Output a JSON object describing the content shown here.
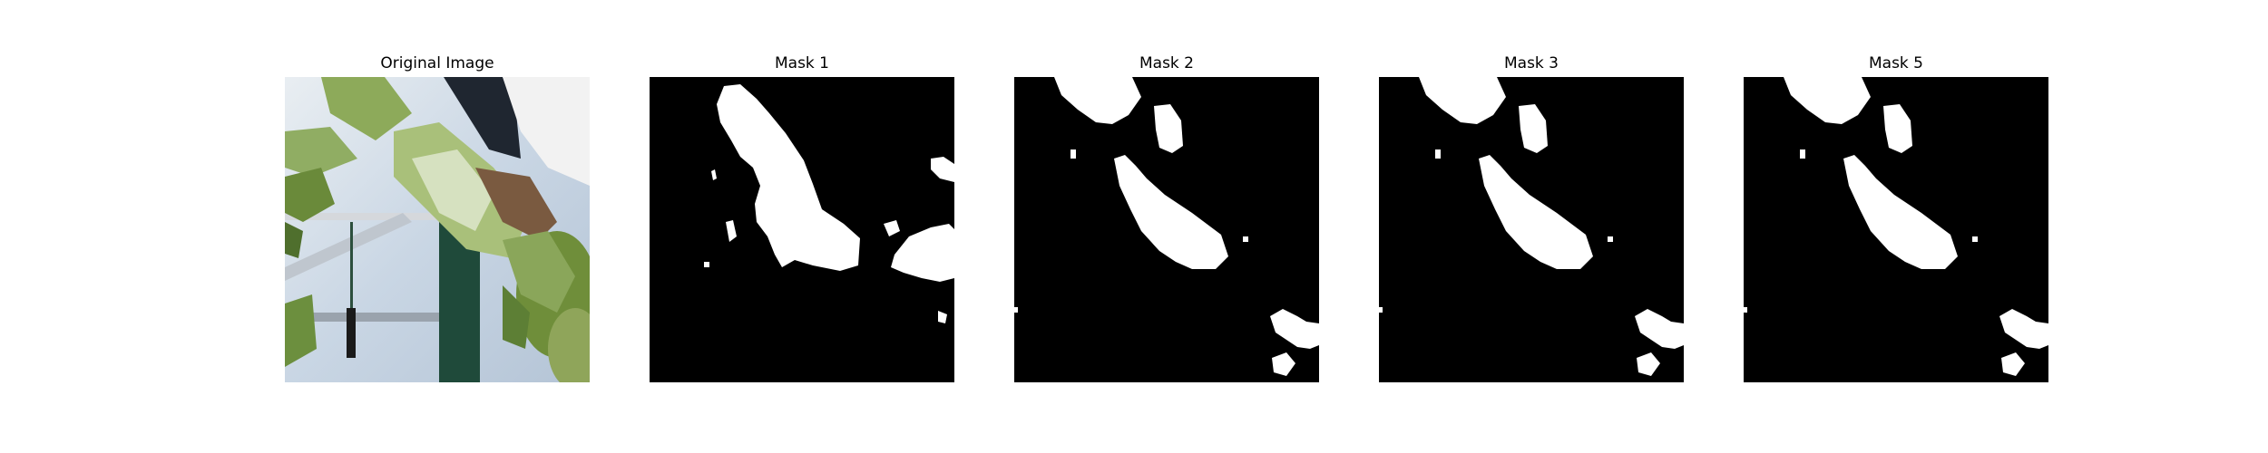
{
  "panels": [
    {
      "title": "Original Image",
      "kind": "photo"
    },
    {
      "title": "Mask 1",
      "kind": "mask"
    },
    {
      "title": "Mask 2",
      "kind": "mask"
    },
    {
      "title": "Mask 3",
      "kind": "mask"
    },
    {
      "title": "Mask 5",
      "kind": "mask"
    }
  ],
  "colors": {
    "background": "#ffffff",
    "mask_background": "#000000",
    "mask_foreground": "#ffffff"
  }
}
